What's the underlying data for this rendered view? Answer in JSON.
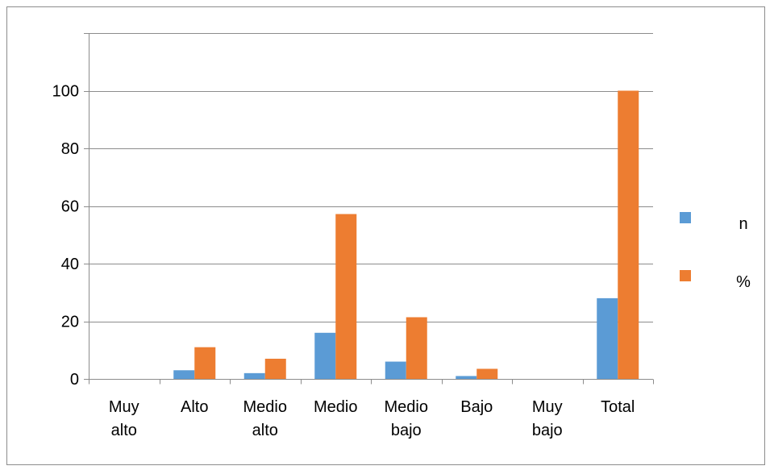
{
  "chart_data": {
    "type": "bar",
    "categories": [
      [
        "Muy",
        "alto"
      ],
      [
        "Alto"
      ],
      [
        "Medio",
        "alto"
      ],
      [
        "Medio"
      ],
      [
        "Medio",
        "bajo"
      ],
      [
        "Bajo"
      ],
      [
        "Muy",
        "bajo"
      ],
      [
        "Total"
      ]
    ],
    "series": [
      {
        "name": "n",
        "color": "#5b9bd5",
        "values": [
          0,
          3,
          2,
          16,
          6,
          1,
          0,
          28
        ]
      },
      {
        "name": "%",
        "color": "#ed7d31",
        "values": [
          0,
          11,
          7,
          57.2,
          21.4,
          3.5,
          0,
          100
        ]
      }
    ],
    "ylim": [
      0,
      120
    ],
    "yticks": [
      0,
      20,
      40,
      60,
      80,
      100
    ],
    "grid": true,
    "legend_position": "right",
    "title": "",
    "xlabel": "",
    "ylabel": ""
  }
}
